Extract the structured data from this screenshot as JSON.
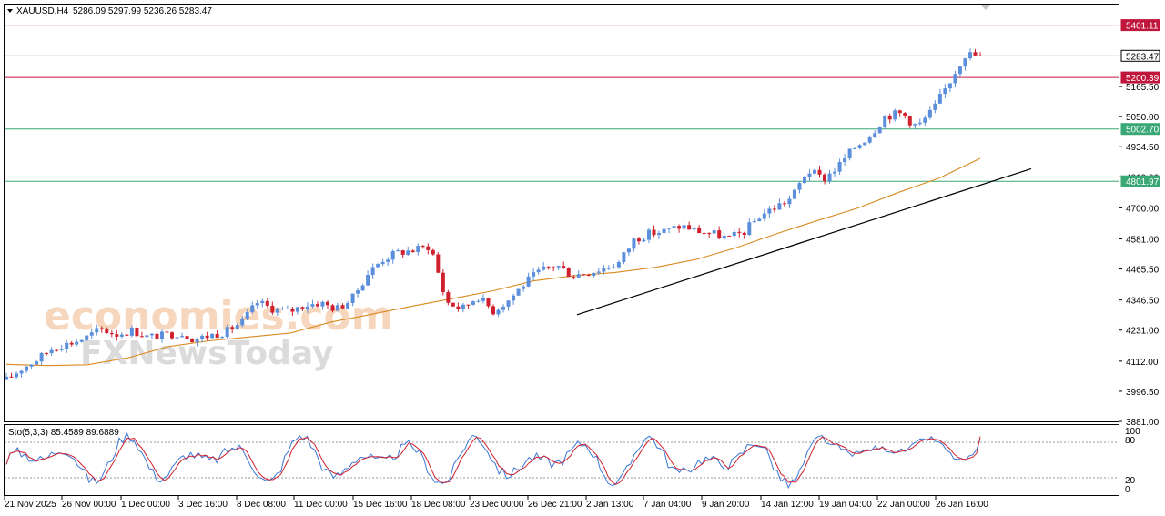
{
  "header": {
    "symbol": "XAUUSD,H4",
    "ohlc": "5286.09 5297.99 5236.26 5283.47"
  },
  "watermark": {
    "line1": "economies.com",
    "line2": "FXNewsToday"
  },
  "indicator": {
    "label": "Sto(5,3,3) 85.4589 89.6889",
    "axis": [
      "100",
      "80",
      "20",
      "0"
    ]
  },
  "levels": [
    {
      "label": "5401.11",
      "value": 5401.11,
      "color": "#c0163b"
    },
    {
      "label": "5283.47",
      "value": 5283.47,
      "color": "#000000"
    },
    {
      "label": "5200.39",
      "value": 5200.39,
      "color": "#c0163b"
    },
    {
      "label": "5002.70",
      "value": 5002.7,
      "color": "#3aa874"
    },
    {
      "label": "4801.97",
      "value": 4801.97,
      "color": "#3aa874"
    }
  ],
  "chart_data": {
    "type": "candlestick",
    "ylim": [
      3881,
      5480
    ],
    "y_ticks": [
      "5165.50",
      "5050.00",
      "4934.50",
      "4819.00",
      "4700.00",
      "4581.00",
      "4465.50",
      "4346.50",
      "4231.00",
      "4112.00",
      "3996.50",
      "3881.00"
    ],
    "x_ticks": [
      "21 Nov 2025",
      "26 Nov 00:00",
      "1 Dec 00:00",
      "3 Dec 16:00",
      "8 Dec 08:00",
      "11 Dec 00:00",
      "15 Dec 16:00",
      "18 Dec 08:00",
      "23 Dec 00:00",
      "26 Dec 21:00",
      "2 Jan 13:00",
      "7 Jan 04:00",
      "9 Jan 20:00",
      "14 Jan 12:00",
      "19 Jan 04:00",
      "22 Jan 00:00",
      "26 Jan 16:00"
    ],
    "close_path": [
      4040,
      4085,
      4120,
      4165,
      4180,
      4200,
      4235,
      4215,
      4230,
      4205,
      4210,
      4222,
      4195,
      4212,
      4225,
      4262,
      4338,
      4312,
      4302,
      4328,
      4336,
      4312,
      4350,
      4448,
      4505,
      4530,
      4538,
      4555,
      4340,
      4312,
      4362,
      4305,
      4348,
      4412,
      4458,
      4482,
      4442,
      4452,
      4468,
      4490,
      4582,
      4602,
      4612,
      4632,
      4612,
      4600,
      4582,
      4610,
      4672,
      4705,
      4738,
      4845,
      4810,
      4862,
      4932,
      4982,
      5055,
      5062,
      5010,
      5075,
      5180,
      5290,
      5283.47
    ],
    "series": [
      {
        "name": "",
        "type": "moving-average",
        "color": "#d98a1f",
        "values": [
          4100,
          4095,
          4098,
          4125,
          4168,
          4190,
          4205,
          4220,
          4262,
          4292,
          4323,
          4352,
          4382,
          4420,
          4440,
          4452,
          4472,
          4502,
          4548,
          4602,
          4652,
          4700,
          4760,
          4815,
          4890
        ]
      }
    ],
    "trendline": {
      "from": [
        4290,
        4290
      ],
      "to": [
        4850,
        4850
      ],
      "color": "#000000"
    },
    "stochastic": {
      "k": 85.4589,
      "d": 89.6889,
      "levels": [
        80,
        20
      ],
      "ylim": [
        0,
        100
      ],
      "line_colors": [
        "#3b77d6",
        "#d0202e"
      ]
    },
    "bull_color": "#5b8fdc",
    "bear_color": "#d0202e"
  }
}
